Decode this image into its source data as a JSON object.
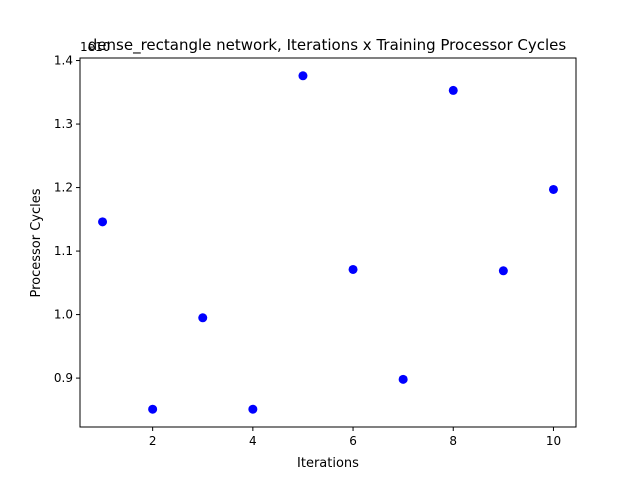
{
  "chart_data": {
    "type": "scatter",
    "title": "dense_rectangle network, Iterations x Training Processor Cycles",
    "xlabel": "Iterations",
    "ylabel": "Processor Cycles",
    "y_offset_label": "1e10",
    "xlim": [
      0.55,
      10.45
    ],
    "ylim": [
      0.823,
      1.404
    ],
    "xticks": [
      2,
      4,
      6,
      8,
      10
    ],
    "xtick_labels": [
      "2",
      "4",
      "6",
      "8",
      "10"
    ],
    "yticks": [
      0.9,
      1.0,
      1.1,
      1.2,
      1.3,
      1.4
    ],
    "ytick_labels": [
      "0.9",
      "1.0",
      "1.1",
      "1.2",
      "1.3",
      "1.4"
    ],
    "grid": false,
    "series": [
      {
        "color": "#0000ff",
        "x": [
          1,
          2,
          3,
          4,
          5,
          6,
          7,
          8,
          9,
          10
        ],
        "y": [
          1.146,
          0.851,
          0.995,
          0.851,
          1.376,
          1.071,
          0.898,
          1.353,
          1.069,
          1.197
        ]
      }
    ]
  }
}
